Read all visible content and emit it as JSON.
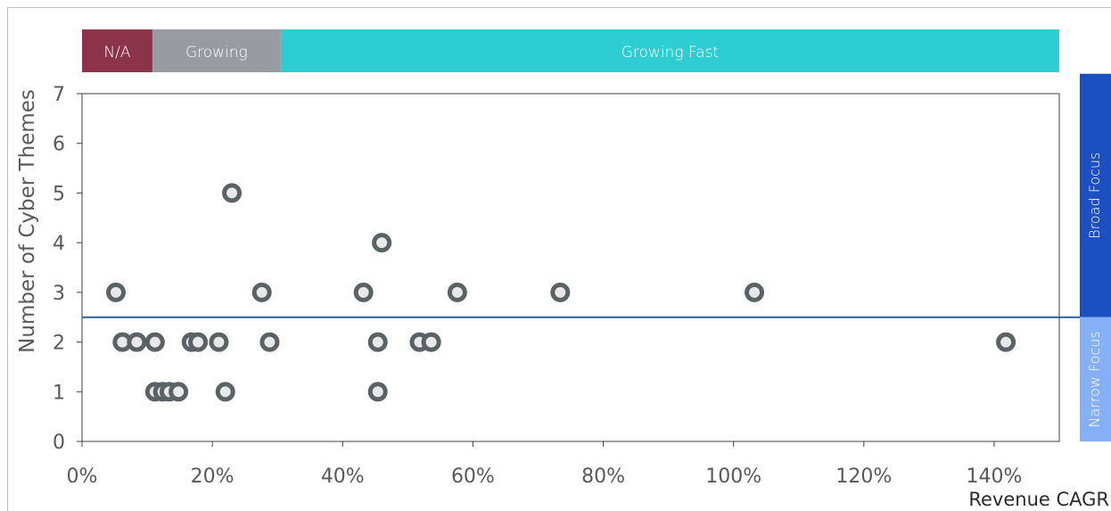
{
  "chart_data": {
    "type": "scatter",
    "xlabel": "Revenue CAGR",
    "ylabel": "Number of Cyber Themes",
    "xlim": [
      0,
      150
    ],
    "ylim": [
      0,
      7
    ],
    "x_ticks": [
      "0%",
      "20%",
      "40%",
      "60%",
      "80%",
      "100%",
      "120%",
      "140%"
    ],
    "y_ticks": [
      "0",
      "1",
      "2",
      "3",
      "4",
      "5",
      "6",
      "7"
    ],
    "x_tick_values": [
      0,
      20,
      40,
      60,
      80,
      100,
      120,
      140
    ],
    "y_tick_values": [
      0,
      1,
      2,
      3,
      4,
      5,
      6,
      7
    ],
    "threshold_y": 2.5,
    "top_bands": [
      {
        "label": "N/A",
        "from": 0,
        "to": 10.8,
        "color": "#8b3449"
      },
      {
        "label": "Growing",
        "from": 10.8,
        "to": 30.5,
        "color": "#979ca1"
      },
      {
        "label": "Growing Fast",
        "from": 30.5,
        "to": 150,
        "color": "#2ecdd4"
      }
    ],
    "side_bands": [
      {
        "label": "Broad Focus",
        "from": 2.5,
        "to": 7.4,
        "color": "#1c4fc0"
      },
      {
        "label": "Narrow Focus",
        "from": 0,
        "to": 2.5,
        "color": "#86b0f6"
      }
    ],
    "points": [
      {
        "x": 5.2,
        "y": 3
      },
      {
        "x": 6.2,
        "y": 2
      },
      {
        "x": 8.4,
        "y": 2
      },
      {
        "x": 11.2,
        "y": 2
      },
      {
        "x": 11.2,
        "y": 1
      },
      {
        "x": 12.4,
        "y": 1
      },
      {
        "x": 13.4,
        "y": 1
      },
      {
        "x": 14.8,
        "y": 1
      },
      {
        "x": 16.8,
        "y": 2
      },
      {
        "x": 17.8,
        "y": 2
      },
      {
        "x": 21.0,
        "y": 2
      },
      {
        "x": 22.0,
        "y": 1
      },
      {
        "x": 23.0,
        "y": 5
      },
      {
        "x": 27.6,
        "y": 3
      },
      {
        "x": 28.8,
        "y": 2
      },
      {
        "x": 43.2,
        "y": 3
      },
      {
        "x": 45.4,
        "y": 2
      },
      {
        "x": 45.4,
        "y": 1
      },
      {
        "x": 46.0,
        "y": 4
      },
      {
        "x": 51.8,
        "y": 2
      },
      {
        "x": 53.6,
        "y": 2
      },
      {
        "x": 57.6,
        "y": 3
      },
      {
        "x": 73.4,
        "y": 3
      },
      {
        "x": 103.2,
        "y": 3
      },
      {
        "x": 141.8,
        "y": 2
      }
    ],
    "colors": {
      "marker_stroke": "#5b6266",
      "marker_fill": "#e8e8e8",
      "threshold_line": "#2f5d9a",
      "axis_text": "#595959",
      "axis_line": "#404040"
    }
  }
}
